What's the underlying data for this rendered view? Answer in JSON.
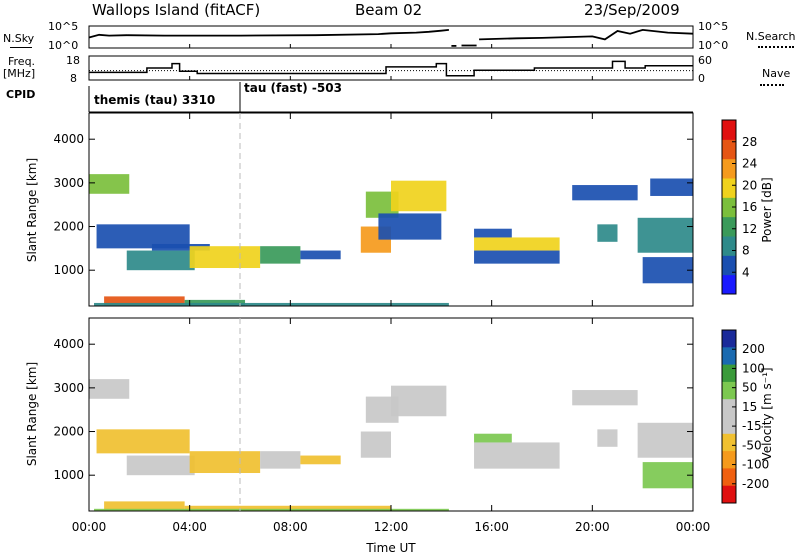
{
  "header": {
    "station": "Wallops Island (fitACF)",
    "beam": "Beam 02",
    "date": "23/Sep/2009"
  },
  "left_labels": {
    "nsky": "N.Sky",
    "freq": "Freq.",
    "freq_unit": "[MHz]",
    "cpid": "CPID"
  },
  "right_labels": {
    "nsearch": "N.Search",
    "nave": "Nave"
  },
  "axis_ticks": {
    "noise_left_top": "10^5",
    "noise_left_bottom": "10^0",
    "noise_right_top": "10^5",
    "noise_right_bottom": "10^0",
    "freq_top": "18",
    "freq_bottom": "8",
    "nave_top": "60",
    "nave_bottom": "0"
  },
  "cpid": [
    {
      "label": "themis (tau) 3310",
      "start": "00:00"
    },
    {
      "label": "tau (fast) -503",
      "start": "06:00"
    }
  ],
  "time_axis": {
    "label": "Time UT",
    "ticks": [
      "00:00",
      "04:00",
      "08:00",
      "12:00",
      "16:00",
      "20:00",
      "00:00"
    ]
  },
  "range_axis": {
    "label": "Slant Range [km]",
    "ticks": [
      "1000",
      "2000",
      "3000",
      "4000"
    ]
  },
  "power_colorbar": {
    "label": "Power [dB]",
    "ticks": [
      "4",
      "8",
      "12",
      "16",
      "20",
      "24",
      "28"
    ]
  },
  "velocity_colorbar": {
    "label": "Velocity [m s⁻¹]",
    "ticks": [
      "-200",
      "-100",
      "-50",
      "-15",
      "15",
      "50",
      "100",
      "200"
    ]
  },
  "chart_data": [
    {
      "type": "line",
      "title": "N.Sky / N.Search",
      "x_unit": "hours UT",
      "xlim": [
        0,
        24
      ],
      "ylim": [
        "10^0",
        "10^5"
      ],
      "log_scale": true,
      "segments": [
        {
          "x": [
            0,
            0.4,
            0.8,
            1.5,
            3,
            6,
            9,
            11.5,
            12,
            13,
            13.5,
            14,
            14.3
          ],
          "y": [
            2.5,
            3.2,
            3.0,
            3.1,
            3.0,
            3.0,
            3.1,
            3.4,
            3.6,
            3.8,
            4.0,
            4.3,
            4.5
          ]
        },
        {
          "x": [
            14.4,
            14.6
          ],
          "y": [
            0.3,
            0.3
          ]
        },
        {
          "x": [
            14.8,
            15.4
          ],
          "y": [
            0.4,
            0.4
          ]
        },
        {
          "x": [
            15.5,
            16,
            17,
            18,
            19,
            20,
            20.5,
            21,
            21.5,
            22,
            23,
            24
          ],
          "y": [
            2.0,
            2.1,
            2.3,
            2.4,
            2.6,
            2.8,
            2.0,
            4.2,
            3.5,
            4.5,
            3.8,
            3.5
          ]
        }
      ]
    },
    {
      "type": "line",
      "title": "Freq / Nave",
      "x_unit": "hours UT",
      "xlim": [
        0,
        24
      ],
      "freq_ylim": [
        8,
        18
      ],
      "nave_ylim": [
        0,
        60
      ],
      "freq_steps": [
        [
          0,
          11.0
        ],
        [
          2.3,
          13.0
        ],
        [
          3.3,
          15.0
        ],
        [
          3.6,
          11.5
        ],
        [
          4.3,
          10.5
        ],
        [
          11.8,
          13.5
        ],
        [
          13.8,
          15.0
        ],
        [
          14.2,
          9.5
        ],
        [
          15.3,
          12.0
        ],
        [
          17.7,
          13.0
        ],
        [
          20.8,
          16.0
        ],
        [
          21.3,
          13.0
        ],
        [
          22.1,
          14.0
        ],
        [
          24,
          14.0
        ]
      ],
      "nave_reference": 23
    },
    {
      "type": "heatmap",
      "title": "Power [dB]",
      "xlabel": "Time UT",
      "ylabel": "Slant Range [km]",
      "xlim": [
        0,
        24
      ],
      "ylim": [
        180,
        4600
      ],
      "clim": [
        0,
        32
      ],
      "cells": [
        {
          "t0": 0.0,
          "t1": 1.6,
          "r0": 2750,
          "r1": 3200,
          "v": 17
        },
        {
          "t0": 0.3,
          "t1": 4.0,
          "r0": 1500,
          "r1": 2050,
          "v": 4
        },
        {
          "t0": 1.5,
          "t1": 4.2,
          "r0": 1000,
          "r1": 1450,
          "v": 8
        },
        {
          "t0": 2.5,
          "t1": 4.8,
          "r0": 1450,
          "r1": 1600,
          "v": 5
        },
        {
          "t0": 4.0,
          "t1": 6.8,
          "r0": 1050,
          "r1": 1550,
          "v": 19
        },
        {
          "t0": 6.8,
          "t1": 8.4,
          "r0": 1150,
          "r1": 1550,
          "v": 14
        },
        {
          "t0": 8.4,
          "t1": 10.0,
          "r0": 1250,
          "r1": 1450,
          "v": 5
        },
        {
          "t0": 0.6,
          "t1": 3.8,
          "r0": 200,
          "r1": 400,
          "v": 27
        },
        {
          "t0": 3.8,
          "t1": 6.2,
          "r0": 200,
          "r1": 320,
          "v": 12
        },
        {
          "t0": 0.2,
          "t1": 14.3,
          "r0": 185,
          "r1": 250,
          "v": 9
        },
        {
          "t0": 10.8,
          "t1": 12.0,
          "r0": 1400,
          "r1": 2000,
          "v": 22
        },
        {
          "t0": 11.0,
          "t1": 12.3,
          "r0": 2200,
          "r1": 2800,
          "v": 15
        },
        {
          "t0": 12.0,
          "t1": 14.2,
          "r0": 2350,
          "r1": 3050,
          "v": 19
        },
        {
          "t0": 11.5,
          "t1": 14.0,
          "r0": 1700,
          "r1": 2300,
          "v": 4
        },
        {
          "t0": 15.3,
          "t1": 18.7,
          "r0": 1450,
          "r1": 1750,
          "v": 21
        },
        {
          "t0": 15.3,
          "t1": 18.7,
          "r0": 1150,
          "r1": 1450,
          "v": 6
        },
        {
          "t0": 15.3,
          "t1": 16.8,
          "r0": 1750,
          "r1": 1950,
          "v": 5
        },
        {
          "t0": 19.2,
          "t1": 21.8,
          "r0": 2600,
          "r1": 2950,
          "v": 6
        },
        {
          "t0": 20.2,
          "t1": 21.0,
          "r0": 1650,
          "r1": 2050,
          "v": 10
        },
        {
          "t0": 21.8,
          "t1": 24.0,
          "r0": 1400,
          "r1": 2200,
          "v": 9
        },
        {
          "t0": 22.0,
          "t1": 24.0,
          "r0": 700,
          "r1": 1300,
          "v": 7
        },
        {
          "t0": 22.3,
          "t1": 24.0,
          "r0": 2700,
          "r1": 3100,
          "v": 4
        }
      ]
    },
    {
      "type": "heatmap",
      "title": "Velocity [m s⁻¹]",
      "xlabel": "Time UT",
      "ylabel": "Slant Range [km]",
      "xlim": [
        0,
        24
      ],
      "ylim": [
        180,
        4600
      ],
      "clim": [
        -200,
        200
      ],
      "cells": [
        {
          "t0": 0.0,
          "t1": 1.6,
          "r0": 2750,
          "r1": 3200,
          "v": 0
        },
        {
          "t0": 0.3,
          "t1": 4.0,
          "r0": 1500,
          "r1": 2050,
          "v": -30
        },
        {
          "t0": 1.5,
          "t1": 4.2,
          "r0": 1000,
          "r1": 1450,
          "v": 0
        },
        {
          "t0": 4.0,
          "t1": 6.8,
          "r0": 1050,
          "r1": 1550,
          "v": -40
        },
        {
          "t0": 6.8,
          "t1": 8.4,
          "r0": 1150,
          "r1": 1550,
          "v": 0
        },
        {
          "t0": 8.4,
          "t1": 10.0,
          "r0": 1250,
          "r1": 1450,
          "v": -35
        },
        {
          "t0": 0.6,
          "t1": 3.8,
          "r0": 200,
          "r1": 400,
          "v": -30
        },
        {
          "t0": 3.8,
          "t1": 12.0,
          "r0": 190,
          "r1": 300,
          "v": -35
        },
        {
          "t0": 0.2,
          "t1": 14.3,
          "r0": 185,
          "r1": 230,
          "v": 20
        },
        {
          "t0": 10.8,
          "t1": 12.0,
          "r0": 1400,
          "r1": 2000,
          "v": 0
        },
        {
          "t0": 11.0,
          "t1": 12.3,
          "r0": 2200,
          "r1": 2800,
          "v": 0
        },
        {
          "t0": 12.0,
          "t1": 14.2,
          "r0": 2350,
          "r1": 3050,
          "v": 0
        },
        {
          "t0": 15.3,
          "t1": 18.7,
          "r0": 1150,
          "r1": 1750,
          "v": 0
        },
        {
          "t0": 15.3,
          "t1": 16.8,
          "r0": 1750,
          "r1": 1950,
          "v": 20
        },
        {
          "t0": 19.2,
          "t1": 21.8,
          "r0": 2600,
          "r1": 2950,
          "v": 0
        },
        {
          "t0": 20.2,
          "t1": 21.0,
          "r0": 1650,
          "r1": 2050,
          "v": 0
        },
        {
          "t0": 21.8,
          "t1": 24.0,
          "r0": 1400,
          "r1": 2200,
          "v": 0
        },
        {
          "t0": 22.0,
          "t1": 24.0,
          "r0": 700,
          "r1": 1300,
          "v": 25
        }
      ]
    }
  ],
  "colors": {
    "power_scale": [
      "#1a1aff",
      "#1a4fb0",
      "#2e8a8a",
      "#3a9a5a",
      "#7bbf3c",
      "#f0d21c",
      "#f59a1c",
      "#e55514",
      "#e01010"
    ],
    "velocity_scale": [
      "#e01010",
      "#f06010",
      "#f59a1c",
      "#f0c030",
      "#c8c8c8",
      "#c8c8c8",
      "#7cc850",
      "#3a9a3a",
      "#1a6ab0",
      "#1a2a9a"
    ]
  }
}
